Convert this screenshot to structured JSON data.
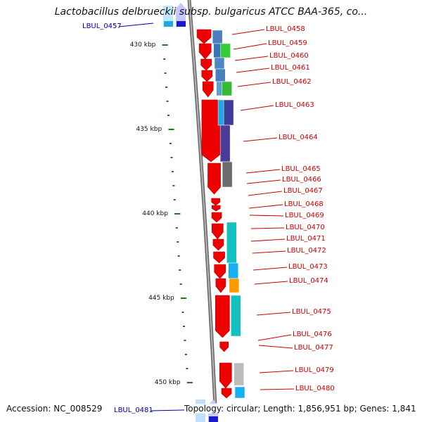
{
  "title": "Lactobacillus delbrueckii subsp. bulgaricus ATCC BAA-365, co...",
  "footer": {
    "accession": "Accession: NC_008529",
    "topology": "Topology: circular; Length: 1,856,951 bp; Genes: 1,841"
  },
  "colors": {
    "gene_arrow": "#ee0000",
    "label_red": "#cc0000",
    "label_blue": "#0000aa",
    "backbone": "#888888",
    "tick": "#1a7a1a"
  },
  "kbp_ticks": [
    {
      "label": "430 kbp",
      "value": 430
    },
    {
      "label": "435 kbp",
      "value": 435
    },
    {
      "label": "440 kbp",
      "value": 440
    },
    {
      "label": "445 kbp",
      "value": 445
    },
    {
      "label": "450 kbp",
      "value": 450
    }
  ],
  "genes": [
    {
      "name": "LBUL_0457",
      "strand": "reverse"
    },
    {
      "name": "LBUL_0458",
      "strand": "forward"
    },
    {
      "name": "LBUL_0459",
      "strand": "forward"
    },
    {
      "name": "LBUL_0460",
      "strand": "forward"
    },
    {
      "name": "LBUL_0461",
      "strand": "forward"
    },
    {
      "name": "LBUL_0462",
      "strand": "forward"
    },
    {
      "name": "LBUL_0463",
      "strand": "forward"
    },
    {
      "name": "LBUL_0464",
      "strand": "forward"
    },
    {
      "name": "LBUL_0465",
      "strand": "forward"
    },
    {
      "name": "LBUL_0466",
      "strand": "forward"
    },
    {
      "name": "LBUL_0467",
      "strand": "forward"
    },
    {
      "name": "LBUL_0468",
      "strand": "forward"
    },
    {
      "name": "LBUL_0469",
      "strand": "forward"
    },
    {
      "name": "LBUL_0470",
      "strand": "forward"
    },
    {
      "name": "LBUL_0471",
      "strand": "forward"
    },
    {
      "name": "LBUL_0472",
      "strand": "forward"
    },
    {
      "name": "LBUL_0473",
      "strand": "forward"
    },
    {
      "name": "LBUL_0474",
      "strand": "forward"
    },
    {
      "name": "LBUL_0475",
      "strand": "forward"
    },
    {
      "name": "LBUL_0476",
      "strand": "forward"
    },
    {
      "name": "LBUL_0477",
      "strand": "forward"
    },
    {
      "name": "LBUL_0479",
      "strand": "forward"
    },
    {
      "name": "LBUL_0480",
      "strand": "forward"
    },
    {
      "name": "LBUL_0481",
      "strand": "reverse"
    }
  ]
}
